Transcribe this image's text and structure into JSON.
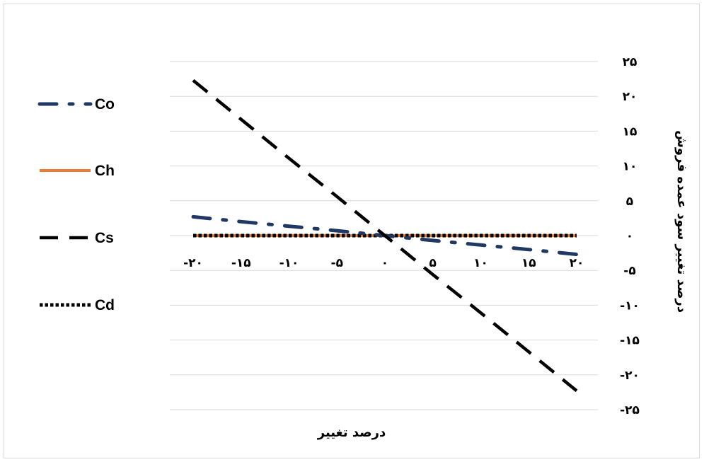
{
  "chart_data": {
    "type": "line",
    "x": [
      -20,
      -15,
      -10,
      -5,
      0,
      5,
      10,
      15,
      20
    ],
    "x_tick_labels": [
      "-۲۰",
      "-۱۵",
      "-۱۰",
      "-۵",
      "۰",
      "۵",
      "۱۰",
      "۱۵",
      "۲۰"
    ],
    "y_tick_labels": [
      "۲۵",
      "۲۰",
      "۱۵",
      "۱۰",
      "۵",
      "۰",
      "-۵",
      "-۱۰",
      "-۱۵",
      "-۲۰",
      "-۲۵"
    ],
    "y_ticks": [
      25,
      20,
      15,
      10,
      5,
      0,
      -5,
      -10,
      -15,
      -20,
      -25
    ],
    "ylim": [
      -25,
      25
    ],
    "xlim": [
      -20,
      20
    ],
    "xlabel": "درصد تغییر",
    "ylabel": "درصد تغییر سود عمده فروش",
    "grid": true,
    "legend_position": "left",
    "series": [
      {
        "name": "Co",
        "values": [
          2.7,
          2.0,
          1.35,
          0.7,
          0.0,
          -0.7,
          -1.35,
          -2.0,
          -2.7
        ],
        "color": "#203864",
        "dash": "dash-dot"
      },
      {
        "name": "Ch",
        "values": [
          0,
          0,
          0,
          0,
          0,
          0,
          0,
          0,
          0
        ],
        "color": "#ED7D31",
        "dash": "solid"
      },
      {
        "name": "Cs",
        "values": [
          22.3,
          16.7,
          11.1,
          5.6,
          0.0,
          -5.6,
          -11.1,
          -16.7,
          -22.3
        ],
        "color": "#000000",
        "dash": "dash"
      },
      {
        "name": "Cd",
        "values": [
          0,
          0,
          0,
          0,
          0,
          0,
          0,
          0,
          0
        ],
        "color": "#000000",
        "dash": "dot"
      }
    ]
  }
}
